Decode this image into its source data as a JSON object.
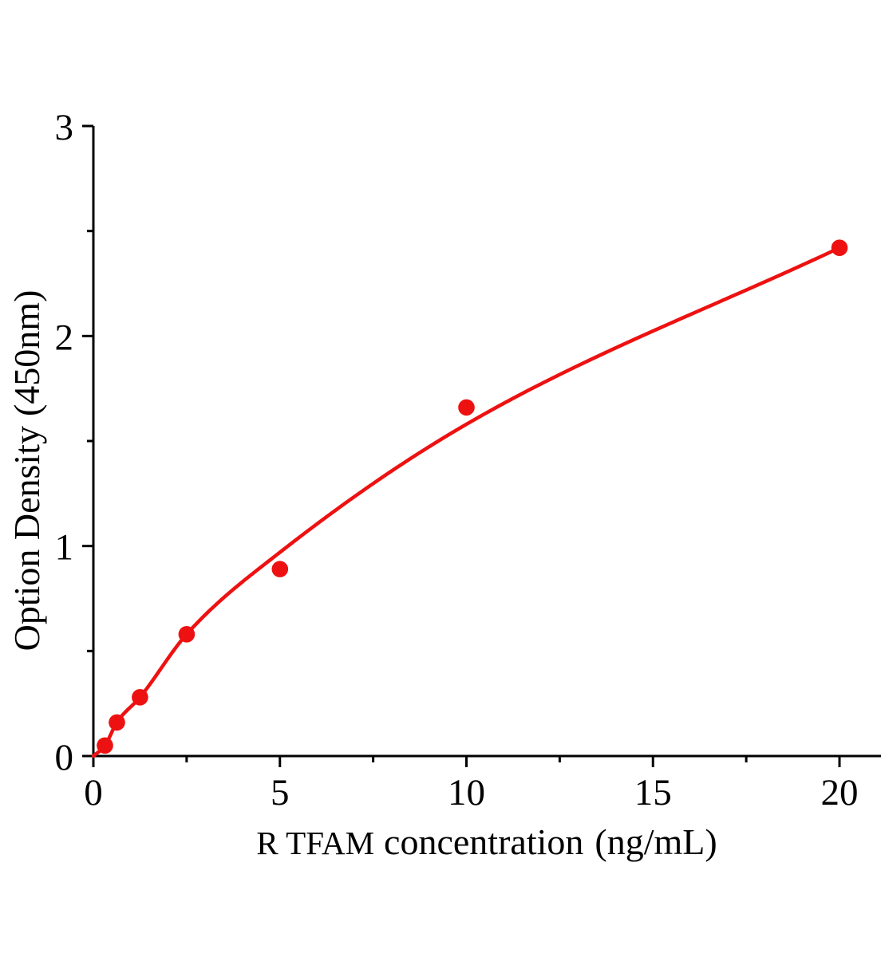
{
  "figure_title": "",
  "chart_data": {
    "type": "scatter",
    "subtype": "standard-curve-with-fit-line",
    "xlabel_prefix": "R TFAM",
    "xlabel_main": "concentration",
    "xlabel_unit": "(ng/mL)",
    "ylabel_main": "Option Density",
    "ylabel_unit": "(450nm)",
    "x": [
      0.31,
      0.63,
      1.25,
      2.5,
      5,
      10,
      20
    ],
    "y": [
      0.05,
      0.16,
      0.28,
      0.58,
      0.89,
      1.66,
      2.42
    ],
    "fit_curve": {
      "x": [
        0,
        0.31,
        0.63,
        1.25,
        2.5,
        5,
        10,
        20
      ],
      "y": [
        0,
        0.05,
        0.16,
        0.28,
        0.58,
        0.97,
        1.58,
        2.42
      ]
    },
    "xlim": [
      0,
      21.1
    ],
    "ylim": [
      0,
      3
    ],
    "xticks_major": [
      0,
      5,
      10,
      15,
      20
    ],
    "xtick_labels": [
      "0",
      "5",
      "10",
      "15",
      "20"
    ],
    "xticks_minor": [
      2.5,
      7.5,
      12.5,
      17.5
    ],
    "yticks_major": [
      0,
      1,
      2,
      3
    ],
    "ytick_labels": [
      "0",
      "1",
      "2",
      "3"
    ],
    "yticks_minor": [
      0.5,
      1.5,
      2.5
    ],
    "grid": false,
    "legend": "none",
    "marker": "circle",
    "colors": {
      "curve": "#ee1111",
      "marker": "#ee1111",
      "axis": "#000000",
      "background": "#ffffff"
    }
  }
}
